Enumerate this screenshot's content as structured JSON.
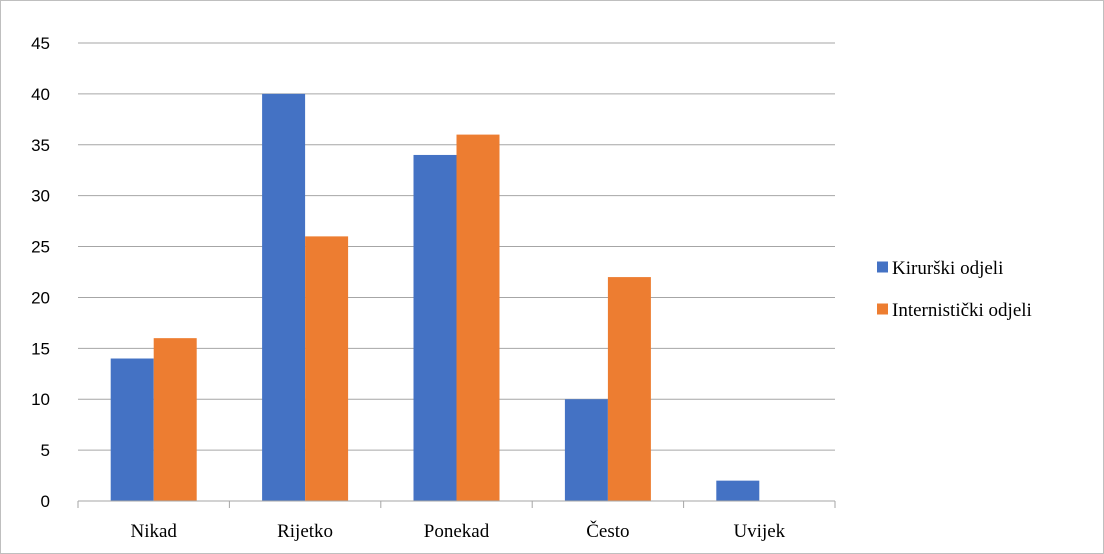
{
  "chart_data": {
    "type": "bar",
    "categories": [
      "Nikad",
      "Rijetko",
      "Ponekad",
      "Često",
      "Uvijek"
    ],
    "series": [
      {
        "name": "Kirurški odjeli",
        "values": [
          14,
          40,
          34,
          10,
          2
        ],
        "color": "#4472c4"
      },
      {
        "name": "Internistički odjeli",
        "values": [
          16,
          26,
          36,
          22,
          0
        ],
        "color": "#ed7d31"
      }
    ],
    "ylim": [
      0,
      45
    ],
    "yticks": [
      0,
      5,
      10,
      15,
      20,
      25,
      30,
      35,
      40,
      45
    ],
    "grid": true,
    "legend_position": "right",
    "gridline_color": "#a6a6a6",
    "axis_color": "#a6a6a6"
  }
}
